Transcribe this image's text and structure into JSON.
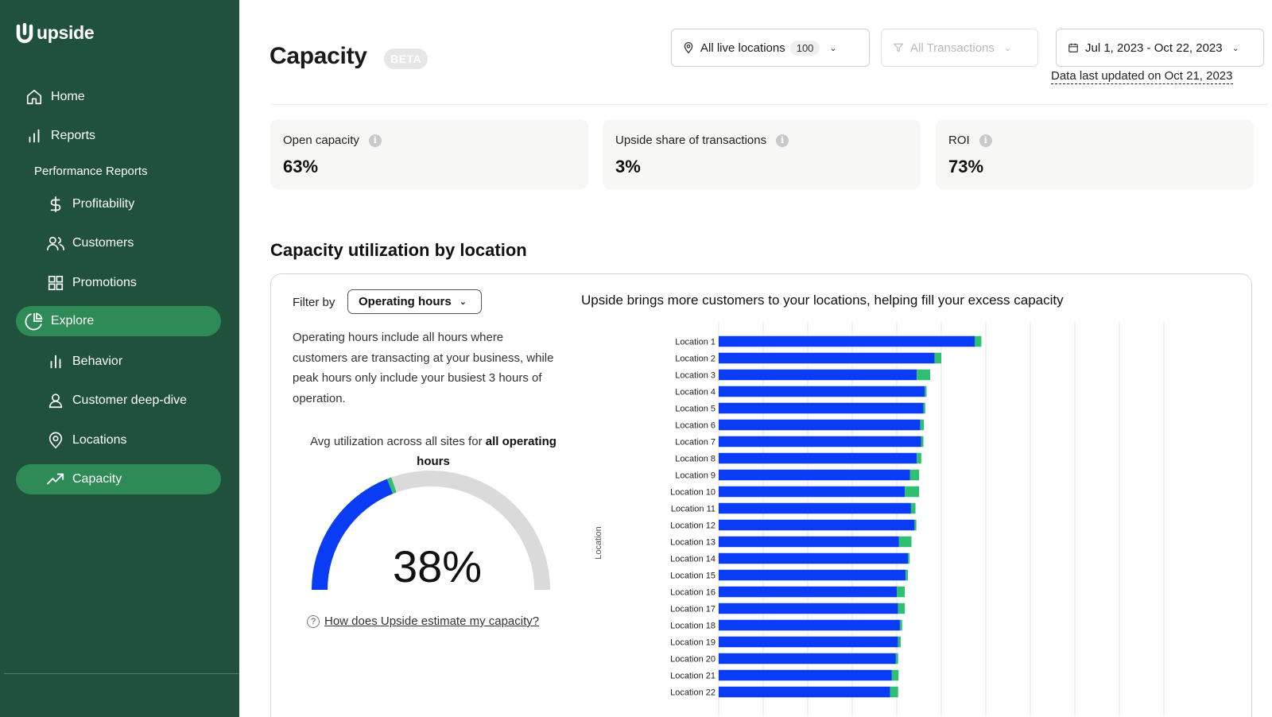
{
  "brand": {
    "name": "upside",
    "color": "#20513d",
    "active_color": "#2e8a57"
  },
  "sidebar": {
    "items": [
      {
        "label": "Home",
        "icon": "home-icon"
      },
      {
        "label": "Reports",
        "icon": "bar-chart-icon"
      },
      {
        "label": "Profitability",
        "icon": "dollar-icon"
      },
      {
        "label": "Customers",
        "icon": "users-icon"
      },
      {
        "label": "Promotions",
        "icon": "grid-icon"
      },
      {
        "label": "Explore",
        "icon": "pie-chart-icon",
        "active": true
      },
      {
        "label": "Behavior",
        "icon": "bar-chart-icon"
      },
      {
        "label": "Customer deep-dive",
        "icon": "user-icon"
      },
      {
        "label": "Locations",
        "icon": "map-pin-icon"
      },
      {
        "label": "Capacity",
        "icon": "trending-up-icon",
        "active": true
      }
    ],
    "sub_header": "Performance Reports"
  },
  "header": {
    "title": "Capacity",
    "badge": "BETA",
    "location_filter": {
      "label": "All live locations",
      "count": "100"
    },
    "transaction_filter": {
      "label": "All Transactions"
    },
    "date_filter": {
      "label": "Jul 1, 2023 - Oct 22, 2023"
    },
    "updated": "Data last updated on Oct 21, 2023"
  },
  "kpis": [
    {
      "label": "Open capacity",
      "value": "63%"
    },
    {
      "label": "Upside share of transactions",
      "value": "3%"
    },
    {
      "label": "ROI",
      "value": "73%"
    }
  ],
  "section": {
    "title": "Capacity utilization by location",
    "filter_by_label": "Filter by",
    "filter_value": "Operating hours",
    "description": "Operating hours include all hours where customers are transacting at your business, while peak hours only include your busiest 3 hours of operation.",
    "gauge_caption_prefix": "Avg utilization across all sites for ",
    "gauge_caption_bold": "all operating hours",
    "gauge_value": "38%",
    "gauge_fraction": 0.38,
    "help_link": "How does Upside estimate my capacity?"
  },
  "chart_data": {
    "type": "bar",
    "orientation": "horizontal",
    "stacked": true,
    "title": "Upside brings more customers to your locations, helping fill your excess capacity",
    "ylabel": "Location",
    "categories": [
      "Location 1",
      "Location 2",
      "Location 3",
      "Location 4",
      "Location 5",
      "Location 6",
      "Location 7",
      "Location 8",
      "Location 9",
      "Location 10",
      "Location 11",
      "Location 12",
      "Location 13",
      "Location 14",
      "Location 15",
      "Location 16",
      "Location 17",
      "Location 18",
      "Location 19",
      "Location 20",
      "Location 21",
      "Location 22"
    ],
    "series": [
      {
        "color": "#0a3cf5",
        "values": [
          57.5,
          48.5,
          44.5,
          46.3,
          46.0,
          45.3,
          45.5,
          44.5,
          43.0,
          41.8,
          43.2,
          44.0,
          40.5,
          42.5,
          42.0,
          40.0,
          40.3,
          40.7,
          40.3,
          39.8,
          38.9,
          38.5
        ]
      },
      {
        "color": "#2fbf71",
        "values": [
          1.5,
          1.5,
          3.0,
          0.4,
          0.4,
          0.8,
          0.5,
          1.0,
          2.0,
          3.2,
          1.0,
          0.4,
          2.8,
          0.4,
          0.5,
          1.8,
          1.5,
          0.5,
          0.6,
          0.5,
          1.5,
          1.8
        ]
      }
    ],
    "xlim": [
      0,
      100
    ],
    "grid": true,
    "legend": "none"
  }
}
